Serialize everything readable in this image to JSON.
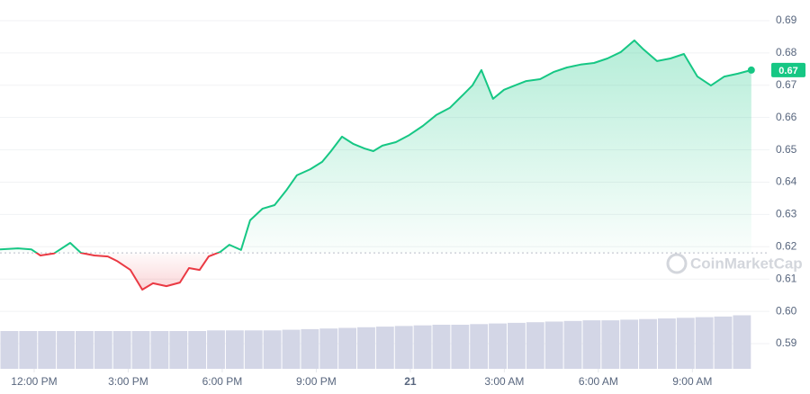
{
  "chart_data": {
    "type": "line",
    "x": [
      -1.09,
      -0.52,
      -0.09,
      0.2,
      0.63,
      1.15,
      1.49,
      1.92,
      2.35,
      2.64,
      3.07,
      3.45,
      3.79,
      4.22,
      4.65,
      4.94,
      5.28,
      5.57,
      5.94,
      6.23,
      6.6,
      6.89,
      7.29,
      7.67,
      8.04,
      8.38,
      8.81,
      9.19,
      9.47,
      9.82,
      10.19,
      10.54,
      10.82,
      11.11,
      11.54,
      11.97,
      12.4,
      12.83,
      13.26,
      13.7,
      13.98,
      14.27,
      14.64,
      14.99,
      15.33,
      15.7,
      16.14,
      16.57,
      17.0,
      17.43,
      17.86,
      18.29,
      18.72,
      19.15,
      19.44,
      19.87,
      20.3,
      20.73,
      21.16,
      21.59,
      22.02,
      22.45,
      22.88
    ],
    "values": [
      0.6192,
      0.6195,
      0.6192,
      0.6173,
      0.6179,
      0.6212,
      0.6181,
      0.6173,
      0.617,
      0.6156,
      0.6128,
      0.6067,
      0.6087,
      0.6078,
      0.6089,
      0.6134,
      0.6128,
      0.617,
      0.6184,
      0.6206,
      0.619,
      0.6282,
      0.6318,
      0.6329,
      0.6374,
      0.6421,
      0.644,
      0.6463,
      0.6496,
      0.6541,
      0.6518,
      0.6504,
      0.6496,
      0.6513,
      0.6524,
      0.6546,
      0.6574,
      0.6608,
      0.663,
      0.6672,
      0.6699,
      0.6747,
      0.6658,
      0.6686,
      0.6699,
      0.6713,
      0.6719,
      0.6741,
      0.6755,
      0.6764,
      0.6769,
      0.6783,
      0.6803,
      0.6839,
      0.6811,
      0.6775,
      0.6783,
      0.6797,
      0.6727,
      0.6699,
      0.6727,
      0.6736,
      0.6747
    ],
    "color": "#16c784",
    "down_color": "#ea3943",
    "baseline": 0.6181,
    "current_price": {
      "value": 0.6747,
      "label": "0.67"
    },
    "xlim": [
      -1.09,
      23.46
    ],
    "ylim": [
      0.5822,
      0.6964
    ],
    "xticks": [
      {
        "value": 0,
        "label": "12:00 PM"
      },
      {
        "value": 3,
        "label": "3:00 PM"
      },
      {
        "value": 6,
        "label": "6:00 PM"
      },
      {
        "value": 9,
        "label": "9:00 PM"
      },
      {
        "value": 12,
        "label": "21"
      },
      {
        "value": 15,
        "label": "3:00 AM"
      },
      {
        "value": 18,
        "label": "6:00 AM"
      },
      {
        "value": 21,
        "label": "9:00 AM"
      }
    ],
    "yticks": [
      0.59,
      {
        "value": 0.6,
        "label": "0.60"
      },
      0.61,
      0.62,
      0.63,
      0.64,
      0.65,
      0.66,
      0.67,
      0.68,
      0.69
    ],
    "grid": true,
    "volume": {
      "type": "bar",
      "axis": "y2",
      "color": "#d3d6e6",
      "values": [
        60,
        60,
        60,
        60,
        60,
        60,
        60,
        60,
        60,
        60,
        60,
        61,
        61,
        61,
        61,
        62,
        63,
        64,
        65,
        66,
        67,
        68,
        69,
        70,
        70,
        71,
        72,
        73,
        74,
        75,
        76,
        77,
        77,
        78,
        79,
        80,
        81,
        82,
        83,
        85
      ]
    },
    "y2lim": [
      0,
      100
    ],
    "watermark": "CoinMarketCap"
  }
}
